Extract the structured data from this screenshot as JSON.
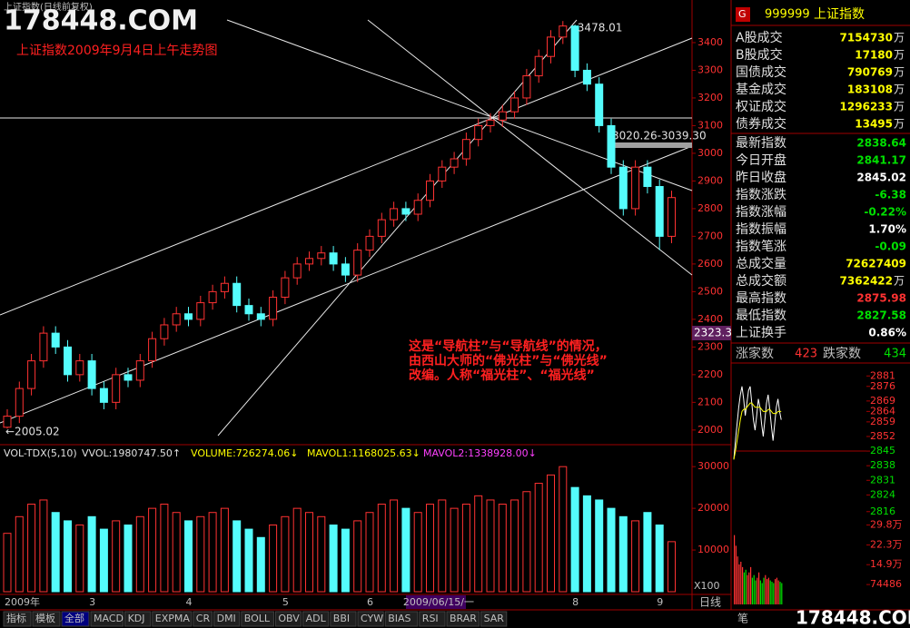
{
  "window": {
    "title": "上证指数(日线前复权)",
    "watermark": "178448.COM",
    "footer_left": "笔",
    "footer_watermark": "178448.COM",
    "period": "日线",
    "scale_note": "X100"
  },
  "annotations": {
    "headline": "上证指数2009年9月4日上午走势图",
    "note_lines": [
      "这是“导航柱”与“导航线”的情况，",
      "由西山大师的“佛光柱”与“佛光线”",
      "改编。人称“福光柱”、“福光线”"
    ],
    "low_mark": "←2005.02",
    "band": "3020.26-3039.30",
    "cursor_price": "2323.3"
  },
  "chart_data": [
    {
      "type": "candlestick",
      "ylim": [
        1947,
        3554
      ],
      "yticks": [
        2000,
        2100,
        2200,
        2300,
        2400,
        2500,
        2600,
        2700,
        2800,
        2900,
        3000,
        3100,
        3200,
        3300,
        3400
      ],
      "up_color": "#ff3232",
      "down_color": "#54fcfc",
      "open": [
        2010,
        2050,
        2150,
        2250,
        2350,
        2300,
        2200,
        2250,
        2150,
        2100,
        2200,
        2180,
        2250,
        2330,
        2380,
        2420,
        2400,
        2460,
        2500,
        2530,
        2450,
        2420,
        2400,
        2480,
        2550,
        2600,
        2620,
        2640,
        2600,
        2560,
        2650,
        2700,
        2760,
        2800,
        2780,
        2830,
        2900,
        2950,
        2980,
        3050,
        3100,
        3120,
        3150,
        3200,
        3280,
        3350,
        3420,
        3460,
        3300,
        3250,
        3100,
        2950,
        2800,
        2950,
        2880,
        2700
      ],
      "close": [
        2050,
        2150,
        2250,
        2350,
        2300,
        2200,
        2250,
        2150,
        2100,
        2200,
        2180,
        2250,
        2330,
        2380,
        2420,
        2400,
        2460,
        2500,
        2530,
        2450,
        2420,
        2400,
        2480,
        2550,
        2600,
        2620,
        2640,
        2600,
        2560,
        2650,
        2700,
        2760,
        2800,
        2780,
        2830,
        2900,
        2950,
        2980,
        3050,
        3100,
        3120,
        3150,
        3200,
        3280,
        3350,
        3420,
        3460,
        3300,
        3250,
        3100,
        2950,
        2800,
        2950,
        2880,
        2700,
        2840
      ],
      "high": [
        2075,
        2175,
        2275,
        2375,
        2375,
        2325,
        2275,
        2275,
        2175,
        2225,
        2225,
        2275,
        2355,
        2405,
        2445,
        2445,
        2485,
        2525,
        2555,
        2555,
        2475,
        2445,
        2505,
        2575,
        2625,
        2645,
        2665,
        2665,
        2625,
        2675,
        2725,
        2785,
        2825,
        2825,
        2855,
        2925,
        2975,
        3005,
        3075,
        3125,
        3145,
        3175,
        3225,
        3305,
        3375,
        3445,
        3478.01,
        3465,
        3325,
        3275,
        3125,
        2975,
        2975,
        2975,
        2905,
        2865
      ],
      "low": [
        2005.02,
        2025,
        2125,
        2225,
        2275,
        2175,
        2175,
        2125,
        2075,
        2075,
        2155,
        2155,
        2225,
        2305,
        2355,
        2375,
        2375,
        2435,
        2475,
        2425,
        2395,
        2375,
        2375,
        2455,
        2525,
        2575,
        2595,
        2575,
        2535,
        2535,
        2625,
        2675,
        2735,
        2755,
        2755,
        2805,
        2875,
        2925,
        2955,
        3025,
        3075,
        3095,
        3125,
        3175,
        3255,
        3325,
        3395,
        3275,
        3225,
        3075,
        2925,
        2775,
        2775,
        2855,
        2650,
        2675
      ]
    },
    {
      "type": "bar",
      "indicator": "VOL-TDX(5,10)",
      "readouts": [
        {
          "text": "VVOL:1980747.50↑",
          "color": "#e0e0e0"
        },
        {
          "text": "VOLUME:726274.06↓",
          "color": "#ffff00"
        },
        {
          "text": "MAVOL1:1168025.63↓",
          "color": "#ffff00"
        },
        {
          "text": "MAVOL2:1338928.00↓",
          "color": "#ff40ff"
        }
      ],
      "ylim": [
        0,
        32000
      ],
      "yticks": [
        10000,
        20000,
        30000
      ],
      "categories": [
        "2009年",
        null,
        null,
        null,
        null,
        null,
        null,
        "3",
        null,
        null,
        null,
        null,
        null,
        null,
        null,
        "4",
        null,
        null,
        null,
        null,
        null,
        null,
        null,
        "5",
        null,
        null,
        null,
        null,
        null,
        null,
        "6",
        null,
        null,
        "2009/06/15/一",
        null,
        null,
        null,
        null,
        null,
        null,
        null,
        null,
        null,
        null,
        null,
        null,
        null,
        "8",
        null,
        null,
        null,
        null,
        null,
        null,
        "9",
        null
      ],
      "values": [
        14000,
        18000,
        21000,
        22000,
        19000,
        17000,
        16000,
        18000,
        15000,
        17000,
        16000,
        18000,
        20000,
        21000,
        19000,
        17000,
        18000,
        19000,
        20000,
        17000,
        15000,
        13000,
        16000,
        18000,
        20000,
        19000,
        18000,
        16000,
        15000,
        17000,
        19000,
        21000,
        22000,
        20000,
        19000,
        21000,
        22000,
        20000,
        21000,
        23000,
        22000,
        21000,
        22000,
        24000,
        26000,
        28000,
        30000,
        25000,
        23000,
        22000,
        20000,
        18000,
        17000,
        19000,
        16000,
        12000
      ]
    },
    {
      "type": "line",
      "ylim": [
        2804.6,
        2887.2
      ],
      "yticks": [
        2816,
        2824,
        2831,
        2838,
        2845,
        2852,
        2859,
        2864,
        2869,
        2876,
        2881
      ],
      "series": [
        {
          "name": "price",
          "color": "#ffffff",
          "values": [
            2841,
            2850,
            2858,
            2866,
            2872,
            2876,
            2870,
            2862,
            2868,
            2874,
            2875.98,
            2868,
            2860,
            2855,
            2862,
            2870,
            2866,
            2858,
            2852,
            2860,
            2868,
            2872,
            2865,
            2857,
            2850,
            2858,
            2866,
            2870,
            2864,
            2860
          ]
        },
        {
          "name": "average",
          "color": "#ffff00",
          "values": [
            2841,
            2845,
            2850,
            2855,
            2860,
            2864,
            2865,
            2865,
            2866,
            2867,
            2868,
            2868,
            2867,
            2866,
            2866,
            2866,
            2866,
            2865,
            2864,
            2864,
            2864,
            2865,
            2865,
            2864,
            2863,
            2863,
            2863,
            2864,
            2864,
            2864
          ]
        }
      ]
    },
    {
      "type": "bar",
      "ylim": [
        0,
        320000
      ],
      "yticks": [
        74486,
        {
          "value": 149000,
          "label": "14.9万"
        },
        {
          "value": 223000,
          "label": "22.3万"
        },
        {
          "value": 298000,
          "label": "29.8万"
        }
      ],
      "values": [
        260000,
        220000,
        180000,
        150000,
        160000,
        140000,
        120000,
        130000,
        110000,
        120000,
        140000,
        100000,
        110000,
        90000,
        100000,
        120000,
        90000,
        80000,
        100000,
        110000,
        95000,
        100000,
        90000,
        85000,
        80000,
        95000,
        100000,
        90000,
        85000,
        80000
      ]
    }
  ],
  "quote_panel": {
    "badge": "G",
    "code": "999999",
    "name": "上证指数",
    "rows": [
      {
        "label": "A股成交",
        "value": "7154730",
        "unit": "万",
        "color": "#ffff00"
      },
      {
        "label": "B股成交",
        "value": "17180",
        "unit": "万",
        "color": "#ffff00"
      },
      {
        "label": "国债成交",
        "value": "790769",
        "unit": "万",
        "color": "#ffff00"
      },
      {
        "label": "基金成交",
        "value": "183108",
        "unit": "万",
        "color": "#ffff00"
      },
      {
        "label": "权证成交",
        "value": "1296233",
        "unit": "万",
        "color": "#ffff00"
      },
      {
        "label": "债券成交",
        "value": "13495",
        "unit": "万",
        "color": "#ffff00"
      },
      {
        "label": "最新指数",
        "value": "2838.64",
        "color": "#00e000"
      },
      {
        "label": "今日开盘",
        "value": "2841.17",
        "color": "#00e000"
      },
      {
        "label": "昨日收盘",
        "value": "2845.02",
        "color": "#ffffff"
      },
      {
        "label": "指数涨跌",
        "value": "-6.38",
        "color": "#00e000"
      },
      {
        "label": "指数涨幅",
        "value": "-0.22%",
        "color": "#00e000"
      },
      {
        "label": "指数振幅",
        "value": "1.70%",
        "color": "#ffffff"
      },
      {
        "label": "指数笔涨",
        "value": "-0.09",
        "color": "#00e000"
      },
      {
        "label": "总成交量",
        "value": "72627409",
        "color": "#ffff00"
      },
      {
        "label": "总成交额",
        "value": "7362422",
        "unit": "万",
        "color": "#ffff00"
      },
      {
        "label": "最高指数",
        "value": "2875.98",
        "color": "#ff3232"
      },
      {
        "label": "最低指数",
        "value": "2827.58",
        "color": "#00e000"
      },
      {
        "label": "上证换手",
        "value": "0.86%",
        "color": "#ffffff"
      }
    ],
    "breadth": {
      "up_label": "涨家数",
      "up": "423",
      "down_label": "跌家数",
      "down": "434"
    }
  },
  "toolbar": [
    "指标",
    "模板",
    "全部",
    "MACD",
    "KDJ",
    "EXPMA",
    "CR",
    "DMI",
    "BOLL",
    "OBV",
    "ADL",
    "BBI",
    "CYW",
    "BIAS",
    "RSI",
    "BRAR",
    "SAR"
  ]
}
